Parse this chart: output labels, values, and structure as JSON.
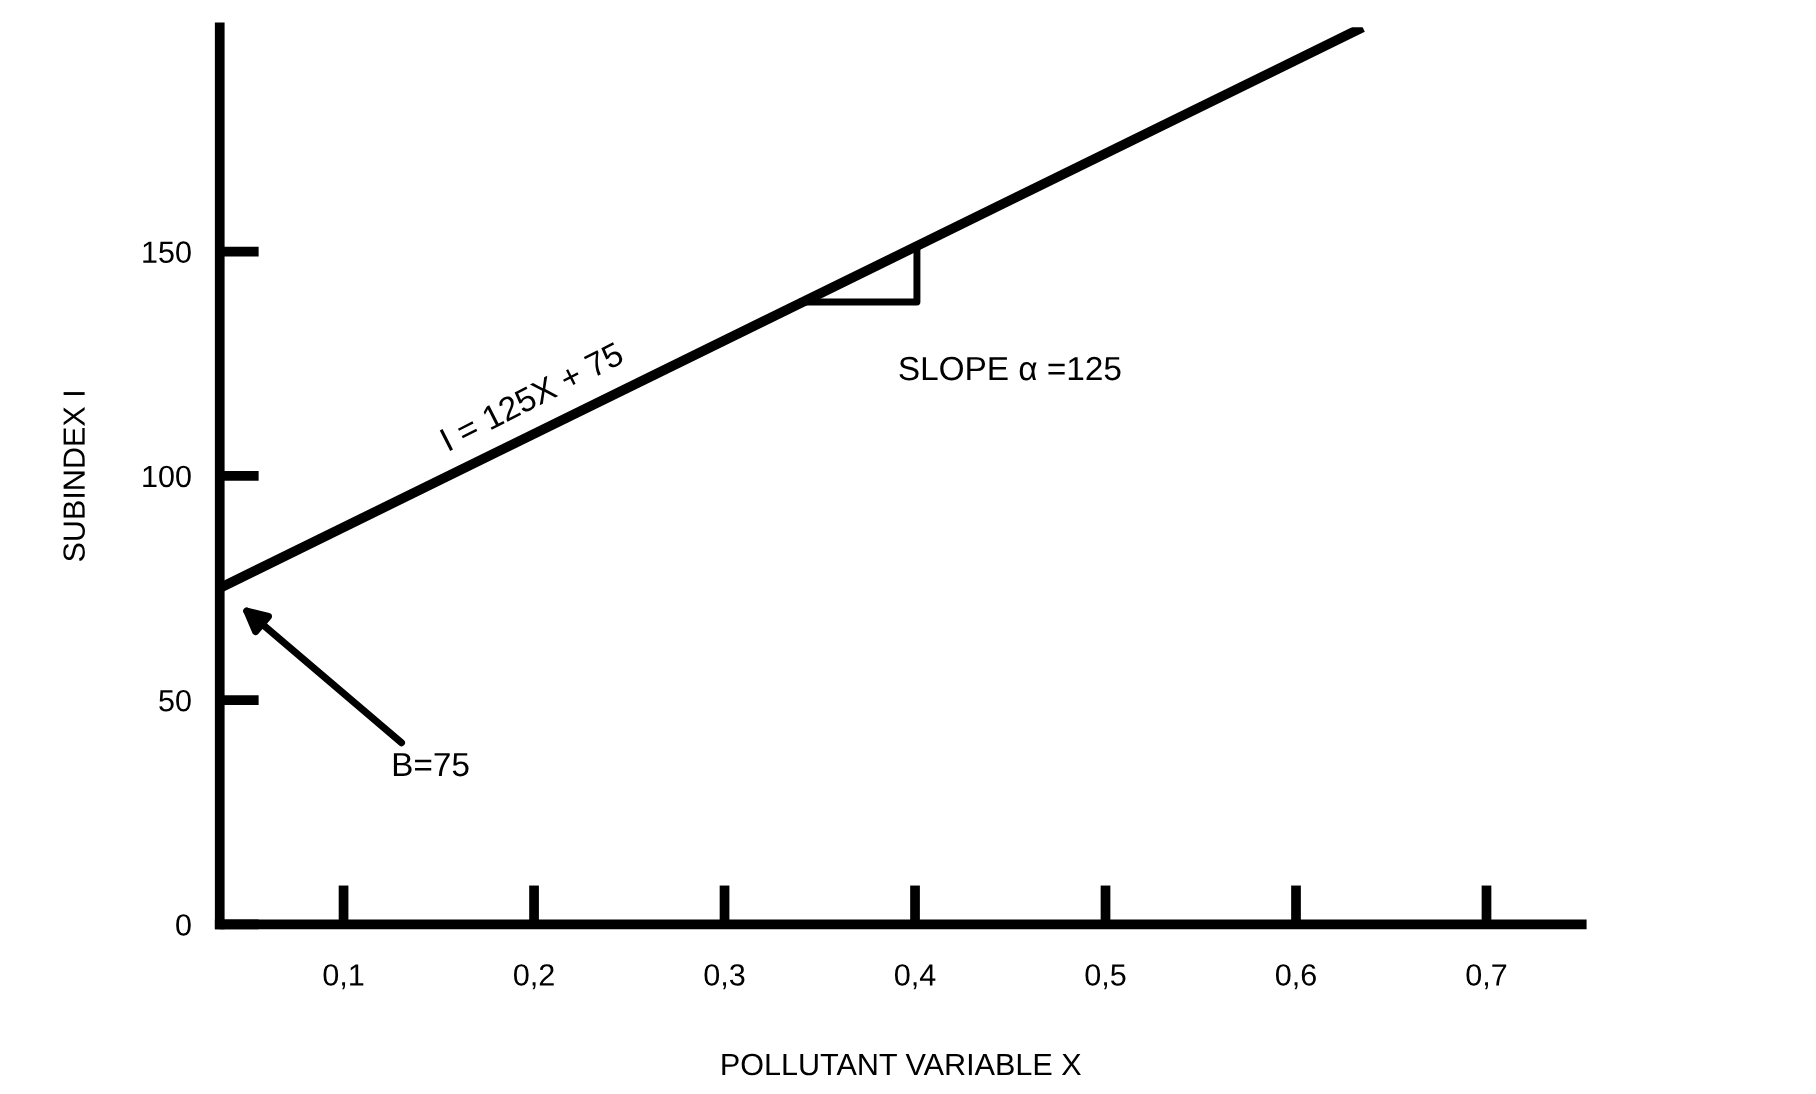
{
  "chart_data": {
    "type": "line",
    "xlabel": "POLLUTANT VARIABLE X",
    "ylabel": "SUBINDEX I",
    "x": [
      0.035,
      0.635
    ],
    "series": [
      {
        "color": "#000000",
        "values": [
          75,
          200
        ]
      }
    ],
    "xlim": [
      0.035,
      0.75
    ],
    "xticks": [
      {
        "value": 0.1,
        "label": "0,1"
      },
      {
        "value": 0.2,
        "label": "0,2"
      },
      {
        "value": 0.3,
        "label": "0,3"
      },
      {
        "value": 0.4,
        "label": "0,4"
      },
      {
        "value": 0.5,
        "label": "0,5"
      },
      {
        "value": 0.6,
        "label": "0,6"
      },
      {
        "value": 0.7,
        "label": "0,7"
      }
    ],
    "ylim": [
      0,
      200
    ],
    "yticks": [
      0,
      50,
      100,
      150
    ],
    "annotations": [
      "I = 125X + 75",
      "SLOPE α =125",
      "B=75"
    ],
    "grid": false,
    "legend": false,
    "marker": "none",
    "line_style": "solid"
  }
}
